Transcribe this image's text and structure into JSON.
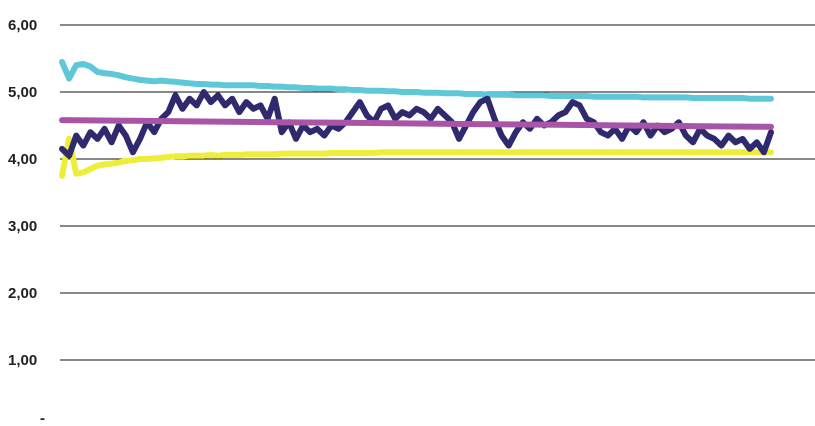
{
  "chart_data": {
    "type": "line",
    "title": "",
    "xlabel": "",
    "ylabel": "",
    "ylim": [
      0,
      6
    ],
    "grid": true,
    "legend": "none",
    "y_ticks": [
      {
        "value": 6,
        "label": "6,00"
      },
      {
        "value": 5,
        "label": "5,00"
      },
      {
        "value": 4,
        "label": "4,00"
      },
      {
        "value": 3,
        "label": "3,00"
      },
      {
        "value": 2,
        "label": "2,00"
      },
      {
        "value": 1,
        "label": "1,00"
      },
      {
        "value": 0,
        "label": "-"
      }
    ],
    "x_count": 101,
    "series": [
      {
        "color": "#5ec8d8",
        "width": 6,
        "values": [
          5.45,
          5.2,
          5.4,
          5.42,
          5.38,
          5.3,
          5.28,
          5.27,
          5.25,
          5.22,
          5.2,
          5.18,
          5.17,
          5.16,
          5.17,
          5.16,
          5.15,
          5.14,
          5.13,
          5.12,
          5.12,
          5.11,
          5.11,
          5.1,
          5.1,
          5.1,
          5.1,
          5.1,
          5.09,
          5.09,
          5.08,
          5.08,
          5.07,
          5.07,
          5.06,
          5.06,
          5.05,
          5.05,
          5.05,
          5.04,
          5.04,
          5.03,
          5.03,
          5.02,
          5.02,
          5.02,
          5.01,
          5.01,
          5.0,
          5.0,
          5.0,
          4.99,
          4.99,
          4.99,
          4.98,
          4.98,
          4.98,
          4.97,
          4.97,
          4.97,
          4.96,
          4.96,
          4.96,
          4.96,
          4.95,
          4.95,
          4.95,
          4.95,
          4.95,
          4.94,
          4.94,
          4.94,
          4.94,
          4.94,
          4.94,
          4.93,
          4.93,
          4.93,
          4.93,
          4.93,
          4.93,
          4.93,
          4.92,
          4.92,
          4.92,
          4.92,
          4.92,
          4.92,
          4.92,
          4.91,
          4.91,
          4.91,
          4.91,
          4.91,
          4.91,
          4.91,
          4.91,
          4.9,
          4.9,
          4.9,
          4.9
        ]
      },
      {
        "color": "#eded3a",
        "width": 6,
        "values": [
          3.75,
          4.3,
          3.78,
          3.8,
          3.85,
          3.9,
          3.92,
          3.93,
          3.95,
          3.97,
          3.98,
          4.0,
          4.0,
          4.01,
          4.02,
          4.03,
          4.04,
          4.04,
          4.05,
          4.05,
          4.05,
          4.06,
          4.05,
          4.06,
          4.06,
          4.06,
          4.07,
          4.07,
          4.07,
          4.07,
          4.07,
          4.08,
          4.08,
          4.08,
          4.08,
          4.08,
          4.08,
          4.08,
          4.09,
          4.09,
          4.09,
          4.09,
          4.09,
          4.09,
          4.09,
          4.1,
          4.1,
          4.1,
          4.1,
          4.1,
          4.1,
          4.1,
          4.1,
          4.1,
          4.1,
          4.1,
          4.1,
          4.1,
          4.1,
          4.1,
          4.1,
          4.1,
          4.1,
          4.1,
          4.1,
          4.1,
          4.1,
          4.1,
          4.1,
          4.1,
          4.1,
          4.1,
          4.1,
          4.1,
          4.1,
          4.1,
          4.1,
          4.1,
          4.1,
          4.1,
          4.1,
          4.1,
          4.1,
          4.1,
          4.1,
          4.1,
          4.1,
          4.1,
          4.1,
          4.1,
          4.1,
          4.1,
          4.1,
          4.1,
          4.1,
          4.1,
          4.1,
          4.1,
          4.1,
          4.1,
          4.1
        ]
      },
      {
        "color": "#2f2a6e",
        "width": 6,
        "values": [
          4.15,
          4.05,
          4.35,
          4.2,
          4.4,
          4.3,
          4.45,
          4.25,
          4.5,
          4.35,
          4.1,
          4.3,
          4.55,
          4.4,
          4.6,
          4.7,
          4.95,
          4.75,
          4.9,
          4.8,
          5.0,
          4.85,
          4.95,
          4.8,
          4.9,
          4.7,
          4.85,
          4.75,
          4.8,
          4.6,
          4.9,
          4.4,
          4.55,
          4.3,
          4.5,
          4.4,
          4.45,
          4.35,
          4.5,
          4.45,
          4.55,
          4.7,
          4.85,
          4.65,
          4.55,
          4.75,
          4.8,
          4.6,
          4.7,
          4.65,
          4.75,
          4.7,
          4.6,
          4.75,
          4.65,
          4.55,
          4.3,
          4.5,
          4.7,
          4.85,
          4.9,
          4.6,
          4.35,
          4.2,
          4.4,
          4.55,
          4.45,
          4.6,
          4.5,
          4.55,
          4.65,
          4.7,
          4.85,
          4.8,
          4.6,
          4.55,
          4.4,
          4.35,
          4.45,
          4.3,
          4.5,
          4.4,
          4.55,
          4.35,
          4.5,
          4.4,
          4.45,
          4.55,
          4.35,
          4.25,
          4.45,
          4.35,
          4.3,
          4.2,
          4.35,
          4.25,
          4.3,
          4.15,
          4.25,
          4.1,
          4.4
        ]
      },
      {
        "color": "#a855a8",
        "width": 6,
        "values": [
          4.58,
          4.57,
          4.56,
          4.55,
          4.54,
          4.53,
          4.52,
          4.51,
          4.5,
          4.49,
          4.48
        ]
      }
    ]
  }
}
